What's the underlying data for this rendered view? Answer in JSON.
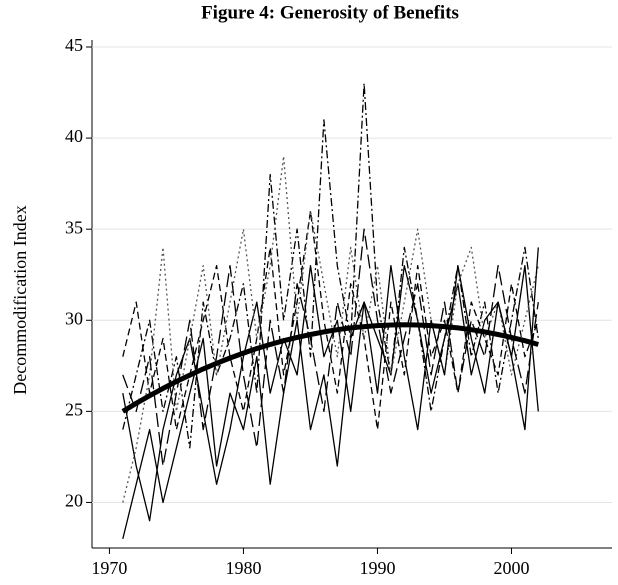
{
  "chart_data": {
    "type": "line",
    "title": "Figure 4: Generosity of Benefits",
    "y_label": "Decommodification Index",
    "x": [
      1971,
      1972,
      1973,
      1974,
      1975,
      1976,
      1977,
      1978,
      1979,
      1980,
      1981,
      1982,
      1983,
      1984,
      1985,
      1986,
      1987,
      1988,
      1989,
      1990,
      1991,
      1992,
      1993,
      1994,
      1995,
      1996,
      1997,
      1998,
      1999,
      2000,
      2001,
      2002
    ],
    "xlim": [
      1968.7,
      2007.5
    ],
    "xticks": [
      1970,
      1980,
      1990,
      2000
    ],
    "ylim": [
      17.5,
      45
    ],
    "yticks": [
      20,
      25,
      30,
      35,
      40,
      45
    ],
    "grid": true,
    "series": [
      {
        "color": "#000000",
        "style": "solid",
        "values": [
          26,
          22,
          19,
          24,
          27,
          29,
          25,
          21,
          24,
          28,
          31,
          26,
          29,
          27,
          33,
          28,
          30,
          25,
          31,
          29,
          27,
          33,
          30,
          26,
          29,
          32,
          27,
          30,
          31,
          28,
          33,
          25
        ]
      },
      {
        "color": "#000000",
        "style": "dashed",
        "values": [
          28,
          31,
          26,
          29,
          24,
          27,
          30,
          33,
          28,
          25,
          29,
          34,
          27,
          31,
          36,
          30,
          26,
          32,
          29,
          24,
          31,
          27,
          33,
          28,
          30,
          26,
          31,
          29,
          27,
          32,
          28,
          30
        ]
      },
      {
        "color": "#000000",
        "style": "dashdot",
        "values": [
          24,
          27,
          30,
          25,
          28,
          23,
          31,
          27,
          29,
          32,
          26,
          38,
          30,
          35,
          28,
          41,
          33,
          29,
          43,
          31,
          27,
          34,
          30,
          25,
          29,
          33,
          28,
          31,
          26,
          30,
          34,
          29
        ]
      },
      {
        "color": "#555555",
        "style": "dotted",
        "values": [
          20,
          23,
          27,
          34,
          25,
          29,
          33,
          27,
          31,
          35,
          29,
          33,
          39,
          30,
          36,
          32,
          28,
          34,
          29,
          33,
          27,
          31,
          35,
          30,
          27,
          32,
          34,
          29,
          31,
          27,
          30,
          33
        ]
      },
      {
        "color": "#000000",
        "style": "longdash",
        "values": [
          27,
          25,
          28,
          22,
          26,
          30,
          24,
          28,
          33,
          27,
          23,
          30,
          26,
          32,
          29,
          25,
          31,
          28,
          35,
          30,
          26,
          29,
          32,
          27,
          31,
          26,
          30,
          28,
          33,
          29,
          26,
          31
        ]
      },
      {
        "color": "#000000",
        "style": "solid",
        "values": [
          18,
          21,
          24,
          20,
          23,
          26,
          29,
          22,
          26,
          24,
          28,
          21,
          26,
          30,
          24,
          27,
          22,
          29,
          31,
          26,
          33,
          28,
          24,
          30,
          27,
          33,
          29,
          26,
          31,
          28,
          24,
          34
        ]
      },
      {
        "color": "#000000",
        "style": "thick",
        "values": [
          25.0,
          25.44,
          25.86,
          26.26,
          26.64,
          26.99,
          27.33,
          27.64,
          27.93,
          28.2,
          28.45,
          28.67,
          28.88,
          29.06,
          29.22,
          29.36,
          29.48,
          29.58,
          29.65,
          29.71,
          29.74,
          29.75,
          29.74,
          29.71,
          29.65,
          29.58,
          29.48,
          29.36,
          29.22,
          29.06,
          28.88,
          28.67
        ]
      }
    ]
  }
}
